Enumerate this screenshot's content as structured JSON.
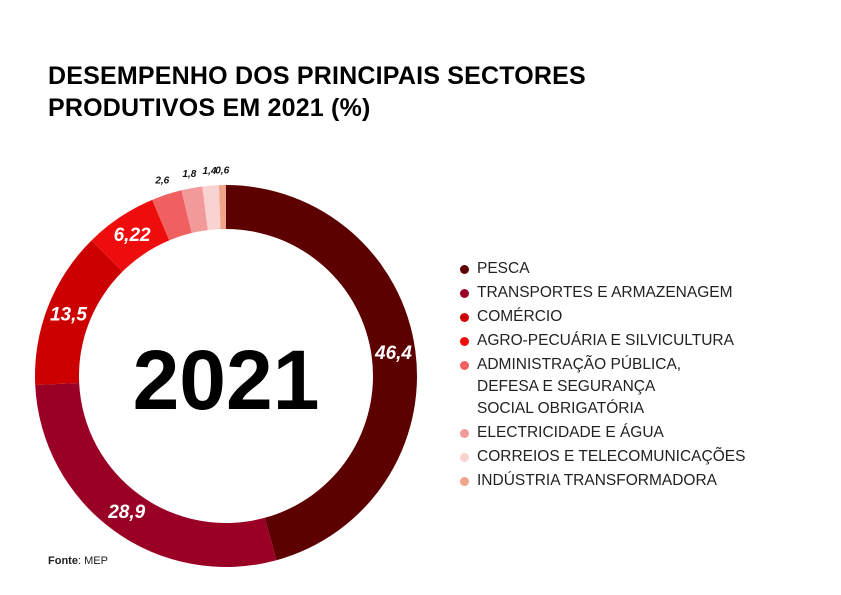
{
  "title_lines": [
    "DESEMPENHO DOS PRINCIPAIS SECTORES",
    "PRODUTIVOS EM 2021 (%)"
  ],
  "source": {
    "label": "Fonte",
    "value": ": MEP"
  },
  "chart_data": {
    "type": "pie",
    "style": "donut",
    "center_label": "2021",
    "slices": [
      {
        "label": "PESCA",
        "value": 46.4,
        "display": "46,4",
        "color": "#5c0000"
      },
      {
        "label": "TRANSPORTES E ARMAZENAGEM",
        "value": 28.9,
        "display": "28,9",
        "color": "#9a0026"
      },
      {
        "label": " COMÉRCIO",
        "value": 13.5,
        "display": "13,5",
        "color": "#cc0000"
      },
      {
        "label": "AGRO-PECUÁRIA E SILVICULTURA",
        "value": 6.22,
        "display": "6,22",
        "color": "#ee0c0c"
      },
      {
        "label": "ADMINISTRAÇÃO PÚBLICA,\nDEFESA E SEGURANÇA\nSOCIAL OBRIGATÓRIA",
        "value": 2.6,
        "display": "2,6",
        "color": "#f06060"
      },
      {
        "label": "ELECTRICIDADE E ÁGUA",
        "value": 1.8,
        "display": "1,8",
        "color": "#f29a9a"
      },
      {
        "label": "CORREIOS E TELECOMUNICAÇÕES",
        "value": 1.4,
        "display": "1,4",
        "color": "#f9d2d2"
      },
      {
        "label": "INDÚSTRIA TRANSFORMADORA",
        "value": 0.6,
        "display": "0,6",
        "color": "#f0a58a"
      }
    ],
    "legend_position": "right"
  }
}
